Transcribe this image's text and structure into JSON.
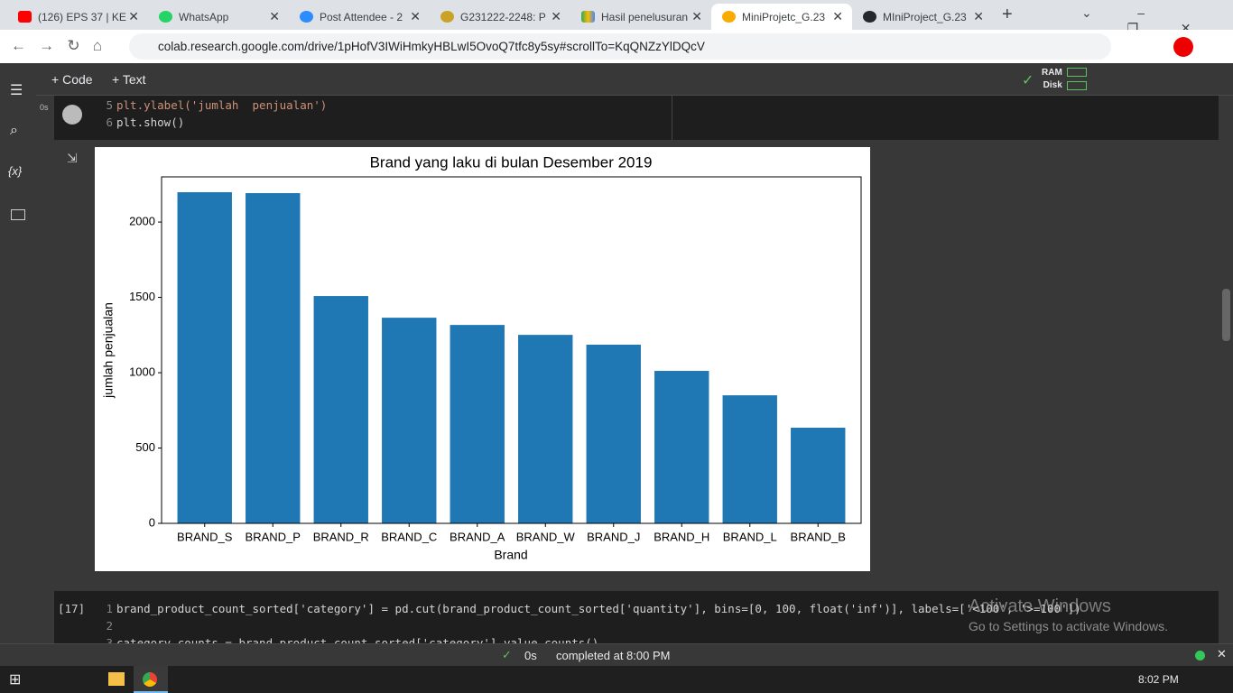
{
  "browser": {
    "tabs": [
      "(126) EPS 37 | KE",
      "WhatsApp",
      "Post Attendee - 2",
      "G231222-2248: P",
      "Hasil penelusuran",
      "MiniProjetc_G.23",
      "MIniProject_G.23"
    ],
    "url": "colab.research.google.com/drive/1pHofV3IWiHmkyHBLwI5OvoQ7tfc8y5sy#scrollTo=KqQNZzYlDQcV"
  },
  "toolbar": {
    "add_code": "Code",
    "add_text": "Text",
    "ram": "RAM",
    "disk": "Disk"
  },
  "cell1": {
    "exec_time": "0s",
    "lines": [
      {
        "num": "5",
        "code": "plt.ylabel('jumlah  penjualan')"
      },
      {
        "num": "6",
        "code": "plt.show()"
      }
    ]
  },
  "chart_data": {
    "type": "bar",
    "title": "Brand yang laku di bulan Desember 2019",
    "x_label": "Brand",
    "y_label": "jumlah  penjualan",
    "categories": [
      "BRAND_S",
      "BRAND_P",
      "BRAND_R",
      "BRAND_C",
      "BRAND_A",
      "BRAND_W",
      "BRAND_J",
      "BRAND_H",
      "BRAND_L",
      "BRAND_B"
    ],
    "values": [
      2198,
      2192,
      1509,
      1365,
      1317,
      1251,
      1186,
      1012,
      850,
      635
    ],
    "color": "#1f77b4",
    "ylim": [
      0,
      2300
    ],
    "yticks": [
      0,
      500,
      1000,
      1500,
      2000
    ]
  },
  "cell2": {
    "count": "[17]",
    "exec_time": "0s",
    "lines": [
      {
        "num": "1",
        "code": "brand_product_count_sorted['category'] = pd.cut(brand_product_count_sorted['quantity'], bins=[0, 100, float('inf')], labels=['<100', '>=100'])"
      },
      {
        "num": "2",
        "code": ""
      },
      {
        "num": "3",
        "code": "category_counts = brand_product_count_sorted['category'].value_counts()"
      }
    ]
  },
  "watermark": {
    "title": "Activate Windows",
    "subtitle": "Go to Settings to activate Windows."
  },
  "status": {
    "time": "0s",
    "message": "completed at 8:00 PM"
  },
  "taskbar": {
    "clock": "8:02 PM"
  }
}
